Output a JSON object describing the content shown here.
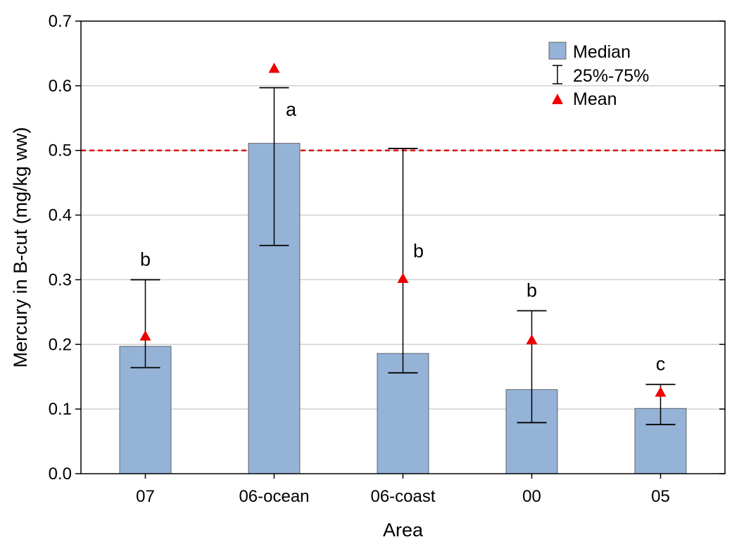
{
  "chart_data": {
    "type": "bar",
    "xlabel": "Area",
    "ylabel": "Mercury in B-cut (mg/kg ww)",
    "ylim": [
      0,
      0.7
    ],
    "y_ticks": [
      "0.0",
      "0.1",
      "0.2",
      "0.3",
      "0.4",
      "0.5",
      "0.6",
      "0.7"
    ],
    "grid": "horizontal",
    "reference_line": {
      "y": 0.5,
      "color": "#dd1111",
      "style": "dashed"
    },
    "categories": [
      "07",
      "06-ocean",
      "06-coast",
      "00",
      "05"
    ],
    "series": [
      {
        "name": "Median",
        "values": [
          0.197,
          0.511,
          0.186,
          0.13,
          0.101
        ],
        "color": "#95b3d7"
      },
      {
        "name": "25%-75%",
        "lower": [
          0.164,
          0.353,
          0.156,
          0.079,
          0.076
        ],
        "upper": [
          0.3,
          0.597,
          0.503,
          0.252,
          0.138
        ]
      },
      {
        "name": "Mean",
        "values": [
          0.213,
          0.627,
          0.302,
          0.207,
          0.126
        ],
        "color": "#ee0000"
      }
    ],
    "group_letters": [
      "b",
      "a",
      "b",
      "b",
      "c"
    ],
    "legend_position": "top-right"
  }
}
